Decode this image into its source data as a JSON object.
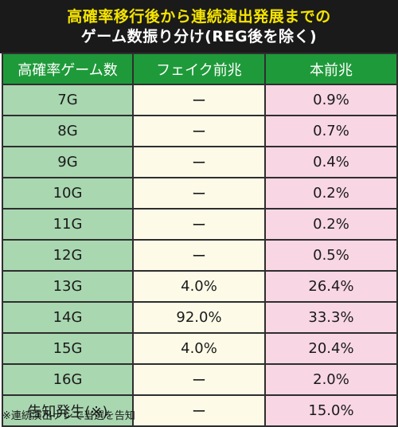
{
  "title": {
    "line1": "高確率移行後から連続演出発展までの",
    "line2": "ゲーム数振り分け(REG後を除く)"
  },
  "table": {
    "headers": [
      "高確率ゲーム数",
      "フェイク前兆",
      "本前兆"
    ],
    "rows": [
      {
        "game": "7G",
        "fake": "ー",
        "real": "0.9%"
      },
      {
        "game": "8G",
        "fake": "ー",
        "real": "0.7%"
      },
      {
        "game": "9G",
        "fake": "ー",
        "real": "0.4%"
      },
      {
        "game": "10G",
        "fake": "ー",
        "real": "0.2%"
      },
      {
        "game": "11G",
        "fake": "ー",
        "real": "0.2%"
      },
      {
        "game": "12G",
        "fake": "ー",
        "real": "0.5%"
      },
      {
        "game": "13G",
        "fake": "4.0%",
        "real": "26.4%"
      },
      {
        "game": "14G",
        "fake": "92.0%",
        "real": "33.3%"
      },
      {
        "game": "15G",
        "fake": "4.0%",
        "real": "20.4%"
      },
      {
        "game": "16G",
        "fake": "ー",
        "real": "2.0%"
      },
      {
        "game": "告知発生(※)",
        "fake": "ー",
        "real": "15.0%"
      }
    ]
  },
  "footnote": "※連続演出ナシで当選を告知",
  "colors": {
    "title_bg": "#1a1a1a",
    "title_line1": "#f5e400",
    "title_line2": "#ffffff",
    "header_bg": "#1f9a3a",
    "game_col_bg": "#a9d7b0",
    "fake_col_bg": "#fdfbe8",
    "real_col_bg": "#f8d6e4"
  }
}
